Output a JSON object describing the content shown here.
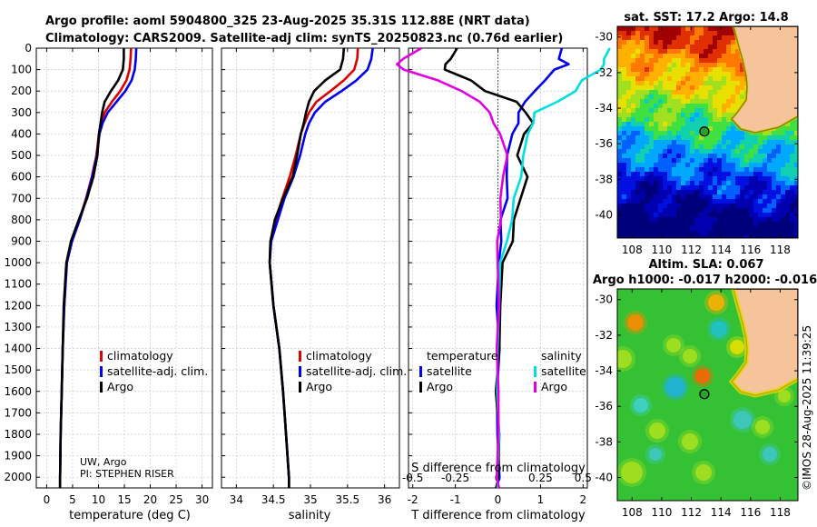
{
  "title_line1": "Argo profile: aoml 5904800_325 23-Aug-2025 35.31S 112.88E (NRT data)",
  "title_line2": "Climatology: CARS2009. Satellite-adj clim: synTS_20250823.nc (0.76d earlier)",
  "credit_line1": "UW, Argo",
  "credit_line2": "PI: STEPHEN RISER",
  "stamp": "©IMOS 28-Aug-2025 11:39:25",
  "colors": {
    "climatology": "#dd0000",
    "satellite": "#0000ee",
    "argo": "#000000",
    "sat_salinity": "#00e0e0",
    "argo_salinity": "#e000e0",
    "land": "#f6c49a"
  },
  "legend": {
    "climatology": "climatology",
    "satellite": "satellite-adj. clim.",
    "argo": "Argo"
  },
  "diff_legend": {
    "temp_header": "temperature",
    "sal_header": "salinity",
    "satellite": "satellite",
    "argo": "Argo"
  },
  "map_sst": {
    "title": "sat. SST: 17.2 Argo: 14.8",
    "lon_ticks": [
      "108",
      "110",
      "112",
      "114",
      "116",
      "118"
    ],
    "lat_ticks": [
      "-30",
      "-32",
      "-34",
      "-36",
      "-38",
      "-40"
    ],
    "float_lon": 112.88,
    "float_lat": -35.31
  },
  "map_sla": {
    "title1": "Altim. SLA: 0.067",
    "title2": "Argo h1000: -0.017 h2000: -0.016",
    "lon_ticks": [
      "108",
      "110",
      "112",
      "114",
      "116",
      "118"
    ],
    "lat_ticks": [
      "-30",
      "-32",
      "-34",
      "-36",
      "-38",
      "-40"
    ],
    "float_lon": 112.88,
    "float_lat": -35.31
  },
  "chart_data": [
    {
      "type": "line",
      "name": "temperature",
      "xlabel": "temperature (deg C)",
      "ylabel": "depth",
      "xlim": [
        -2,
        32
      ],
      "ylim": [
        0,
        2050
      ],
      "xticks": [
        0,
        5,
        10,
        15,
        20,
        25,
        30
      ],
      "yticks": [
        0,
        100,
        200,
        300,
        400,
        500,
        600,
        700,
        800,
        900,
        1000,
        1100,
        1200,
        1300,
        1400,
        1500,
        1600,
        1700,
        1800,
        1900,
        2000
      ],
      "depth": [
        0,
        50,
        100,
        150,
        200,
        250,
        300,
        350,
        400,
        500,
        600,
        700,
        800,
        900,
        1000,
        1200,
        1400,
        1600,
        1800,
        2000,
        2050
      ],
      "series": [
        {
          "name": "climatology",
          "values": [
            16.3,
            16.2,
            16.0,
            15.4,
            14.2,
            12.6,
            11.2,
            10.5,
            10.1,
            9.6,
            8.7,
            7.6,
            6.3,
            4.8,
            3.9,
            3.4,
            3.1,
            2.9,
            2.7,
            2.6,
            2.6
          ]
        },
        {
          "name": "satellite-adj. clim.",
          "values": [
            17.3,
            17.2,
            17.0,
            16.4,
            15.2,
            13.5,
            11.8,
            10.8,
            10.2,
            9.7,
            8.8,
            7.7,
            6.4,
            4.9,
            3.9,
            3.4,
            3.1,
            2.9,
            2.7,
            2.6,
            2.6
          ]
        },
        {
          "name": "Argo",
          "values": [
            14.9,
            14.9,
            14.7,
            13.8,
            12.4,
            11.2,
            10.7,
            10.4,
            10.1,
            9.8,
            9.0,
            7.8,
            6.2,
            4.7,
            3.8,
            3.3,
            3.1,
            2.9,
            2.7,
            2.6,
            2.6
          ]
        }
      ]
    },
    {
      "type": "line",
      "name": "salinity",
      "xlabel": "salinity",
      "ylabel": "depth",
      "xlim": [
        33.8,
        36.2
      ],
      "ylim": [
        0,
        2050
      ],
      "xticks": [
        34,
        34.5,
        35,
        35.5,
        36
      ],
      "depth": [
        0,
        50,
        100,
        150,
        200,
        250,
        300,
        350,
        400,
        500,
        600,
        700,
        800,
        900,
        1000,
        1200,
        1400,
        1600,
        1800,
        2000,
        2050
      ],
      "series": [
        {
          "name": "climatology",
          "values": [
            35.64,
            35.63,
            35.59,
            35.45,
            35.27,
            35.08,
            34.98,
            34.92,
            34.87,
            34.8,
            34.72,
            34.62,
            34.53,
            34.46,
            34.45,
            34.5,
            34.58,
            34.63,
            34.67,
            34.71,
            34.71
          ]
        },
        {
          "name": "satellite-adj. clim.",
          "values": [
            35.84,
            35.82,
            35.77,
            35.62,
            35.42,
            35.2,
            35.06,
            34.98,
            34.93,
            34.86,
            34.77,
            34.65,
            34.56,
            34.47,
            34.45,
            34.5,
            34.58,
            34.63,
            34.67,
            34.71,
            34.71
          ]
        },
        {
          "name": "Argo",
          "values": [
            35.45,
            35.44,
            35.4,
            35.2,
            35.05,
            34.98,
            34.94,
            34.91,
            34.87,
            34.82,
            34.76,
            34.63,
            34.52,
            34.46,
            34.45,
            34.5,
            34.58,
            34.63,
            34.67,
            34.71,
            34.71
          ]
        }
      ]
    },
    {
      "type": "line",
      "name": "differences",
      "xlabel": "T difference from climatology",
      "xlabel2": "S difference from climatology",
      "xlim": [
        -2.1,
        2.1
      ],
      "ylim": [
        0,
        2050
      ],
      "xticks": [
        -2,
        -1,
        0,
        1,
        2
      ],
      "xticks2": [
        -0.5,
        -0.25,
        0,
        0.25,
        0.5
      ],
      "depth": [
        0,
        50,
        75,
        100,
        150,
        200,
        250,
        300,
        350,
        400,
        500,
        600,
        700,
        800,
        900,
        1000,
        1200,
        1400,
        1600,
        1800,
        2000,
        2050
      ],
      "series": [
        {
          "name": "temperature satellite",
          "values": [
            1.5,
            1.4,
            1.7,
            1.3,
            1.1,
            0.9,
            0.6,
            0.5,
            0.5,
            0.3,
            0.25,
            0.2,
            0.2,
            0.1,
            0.05,
            0.02,
            0.0,
            0.0,
            0.0,
            0.0,
            0.0,
            0.0
          ]
        },
        {
          "name": "temperature Argo",
          "values": [
            -1.0,
            -1.1,
            -1.2,
            -1.3,
            -0.6,
            -0.3,
            0.4,
            0.7,
            0.8,
            0.6,
            0.5,
            0.65,
            0.55,
            0.4,
            0.3,
            0.15,
            0.05,
            0.0,
            0.0,
            0.0,
            0.0,
            0.0
          ]
        },
        {
          "name": "salinity satellite",
          "values": [
            0.65,
            0.63,
            0.62,
            0.6,
            0.5,
            0.45,
            0.35,
            0.22,
            0.2,
            0.18,
            0.15,
            0.13,
            0.1,
            0.08,
            0.05,
            0.02,
            0.0,
            0.0,
            0.0,
            0.0,
            0.0,
            0.0
          ]
        },
        {
          "name": "salinity Argo",
          "values": [
            -0.45,
            -0.55,
            -0.6,
            -0.55,
            -0.35,
            -0.22,
            -0.1,
            -0.05,
            -0.03,
            0.02,
            0.05,
            0.03,
            0.02,
            0.01,
            0.0,
            0.0,
            0.0,
            0.0,
            0.0,
            0.0,
            0.0,
            0.0
          ]
        }
      ]
    }
  ]
}
